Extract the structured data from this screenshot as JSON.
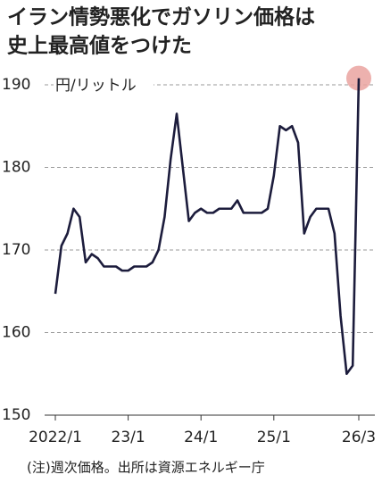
{
  "chart_data": {
    "type": "line",
    "title": [
      "イラン情勢悪化でガソリン価格は",
      "史上最高値をつけた"
    ],
    "y_label": "円/リットル",
    "note": "(注)週次価格。出所は資源エネルギー庁",
    "categories": [
      "2022/1",
      null,
      null,
      null,
      null,
      null,
      null,
      null,
      null,
      null,
      null,
      null,
      "23/1",
      null,
      null,
      null,
      null,
      null,
      null,
      null,
      null,
      null,
      null,
      null,
      "24/1",
      null,
      null,
      null,
      null,
      null,
      null,
      null,
      null,
      null,
      null,
      null,
      "25/1",
      null,
      null,
      null,
      null,
      null,
      null,
      null,
      null,
      null,
      null,
      null,
      null,
      null,
      "26/3"
    ],
    "series": [
      {
        "name": "ガソリン価格",
        "color": "#1c1c3c",
        "values": [
          164.7,
          170.5,
          172,
          175,
          174,
          168.5,
          169.5,
          169,
          168,
          168,
          168,
          167.5,
          167.5,
          168,
          168,
          168,
          168.5,
          170,
          174,
          181,
          186.5,
          180,
          173.5,
          174.5,
          175,
          174.5,
          174.5,
          175,
          175,
          175,
          176,
          174.5,
          174.5,
          174.5,
          174.5,
          175,
          179,
          185,
          184.5,
          185,
          183,
          172,
          174,
          175,
          175,
          175,
          172,
          162,
          155,
          156,
          190.8
        ]
      }
    ],
    "ylim": [
      150,
      192
    ],
    "yticks": [
      150,
      160,
      170,
      180,
      190
    ],
    "grid": true,
    "highlight_color": "#eaa3a0"
  }
}
